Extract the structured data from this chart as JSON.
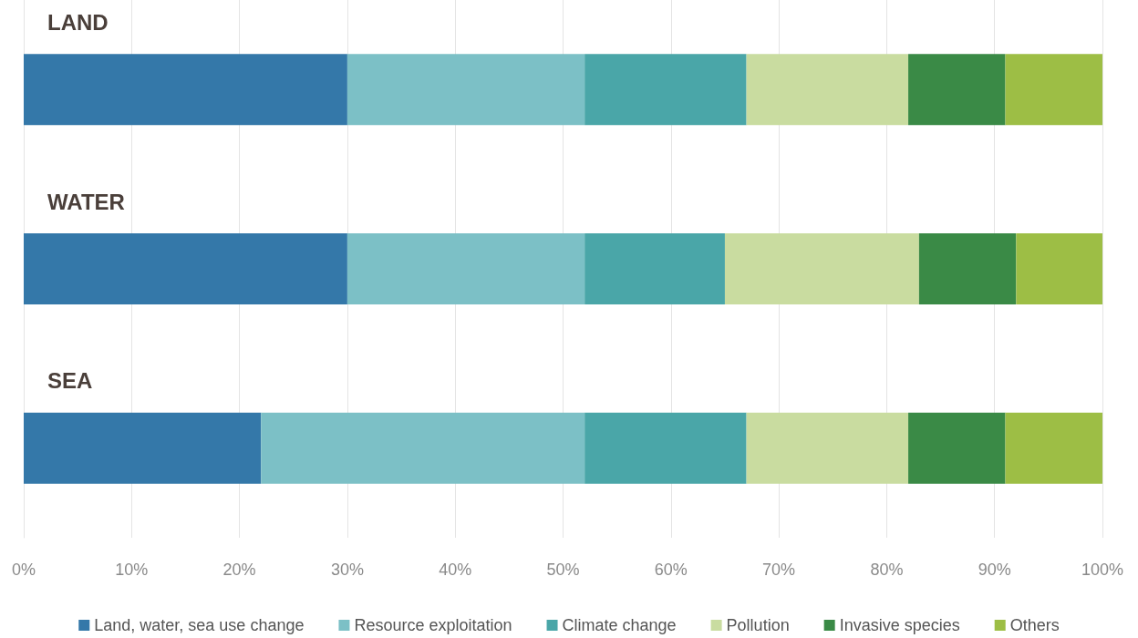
{
  "chart_data": {
    "type": "bar",
    "orientation": "horizontal",
    "stacked": true,
    "categories": [
      "LAND",
      "WATER",
      "SEA"
    ],
    "series": [
      {
        "name": "Land, water, sea use change",
        "color": "#3478a9",
        "values": [
          30,
          30,
          22
        ]
      },
      {
        "name": "Resource exploitation",
        "color": "#7cc0c6",
        "values": [
          22,
          22,
          30
        ]
      },
      {
        "name": "Climate change",
        "color": "#4aa6a8",
        "values": [
          15,
          13,
          15
        ]
      },
      {
        "name": "Pollution",
        "color": "#c9dca0",
        "values": [
          15,
          18,
          15
        ]
      },
      {
        "name": "Invasive species",
        "color": "#3a8a46",
        "values": [
          9,
          9,
          9
        ]
      },
      {
        "name": "Others",
        "color": "#9dbe45",
        "values": [
          9,
          8,
          9
        ]
      }
    ],
    "xlim": [
      0,
      100
    ],
    "xticks": [
      {
        "value": 0,
        "label": "0%"
      },
      {
        "value": 10,
        "label": "10%"
      },
      {
        "value": 20,
        "label": "20%"
      },
      {
        "value": 30,
        "label": "30%"
      },
      {
        "value": 40,
        "label": "40%"
      },
      {
        "value": 50,
        "label": "50%"
      },
      {
        "value": 60,
        "label": "60%"
      },
      {
        "value": 70,
        "label": "70%"
      },
      {
        "value": 80,
        "label": "80%"
      },
      {
        "value": 90,
        "label": "90%"
      },
      {
        "value": 100,
        "label": "100%"
      }
    ],
    "grid": "x",
    "legend": "bottom"
  }
}
